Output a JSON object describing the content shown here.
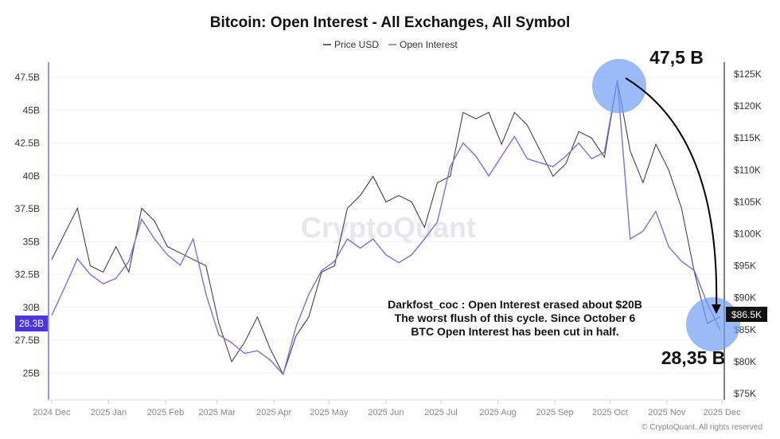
{
  "chart_data": {
    "type": "line",
    "title": "Bitcoin: Open Interest - All Exchanges, All Symbol",
    "legend": {
      "placement": "top-center",
      "entries": [
        "Price USD",
        "Open Interest"
      ]
    },
    "x_start": "2024-12-01",
    "x_step_days": 7,
    "x_ticks": [
      "2024 Dec",
      "2025 Jan",
      "2025 Feb",
      "2025 Mar",
      "2025 Apr",
      "2025 May",
      "2025 Jun",
      "2025 Jul",
      "2025 Aug",
      "2025 Sep",
      "2025 Oct",
      "2025 Nov",
      "2025 Dec"
    ],
    "y_left": {
      "ticks": [
        "25B",
        "27.5B",
        "30B",
        "32.5B",
        "35B",
        "37.5B",
        "40B",
        "42.5B",
        "45B",
        "47.5B"
      ],
      "range": [
        22.5,
        49
      ],
      "unit": "B"
    },
    "y_right": {
      "ticks": [
        "$75K",
        "$80K",
        "$85K",
        "$90K",
        "$95K",
        "$100K",
        "$105K",
        "$110K",
        "$115K",
        "$120K",
        "$125K"
      ],
      "range": [
        74,
        128
      ],
      "unit": "K USD"
    },
    "grid": true,
    "series": [
      {
        "name": "Price USD",
        "axis": "right",
        "color": "#333333",
        "values": [
          96,
          100,
          104,
          95,
          94,
          98,
          94,
          104,
          102,
          98,
          97,
          96,
          95,
          86,
          80,
          83,
          87,
          82,
          78,
          84,
          87,
          94,
          95,
          104,
          106,
          109,
          105,
          106,
          105,
          101,
          108,
          109,
          119,
          118,
          119,
          114,
          119,
          117,
          113,
          109,
          111,
          116,
          115,
          112,
          124,
          113,
          108,
          114,
          110,
          104,
          94,
          86,
          87
        ]
      },
      {
        "name": "Open Interest",
        "axis": "left",
        "color": "#7b6fe0",
        "values": [
          29.4,
          31.5,
          33.7,
          32.5,
          31.8,
          32.2,
          33.5,
          36.7,
          35.2,
          34.0,
          33.2,
          35.2,
          31.0,
          27.9,
          27.3,
          26.5,
          26.7,
          26.0,
          24.9,
          28.5,
          31.0,
          32.8,
          33.5,
          35.2,
          34.5,
          35.2,
          34.0,
          33.4,
          34.0,
          35.2,
          36.5,
          40.7,
          42.5,
          41.5,
          40.0,
          41.5,
          43.0,
          41.3,
          41.0,
          40.7,
          41.5,
          42.5,
          41.3,
          41.8,
          47.3,
          35.2,
          35.8,
          37.3,
          34.6,
          33.5,
          32.8,
          30.3,
          28.3
        ]
      }
    ],
    "last_value_labels": {
      "left": "28.3B",
      "right": "$86.5K"
    },
    "annotations": {
      "peak_label": "47,5 B",
      "low_label": "28,35 B",
      "note_lines": [
        "Darkfost_coc : Open Interest erased about $20B",
        "The worst flush of this cycle. Since October 6",
        "BTC Open Interest has been cut in half."
      ]
    },
    "watermark": "CryptoQuant",
    "copyright": "© CryptoQuant. All rights reserved"
  }
}
